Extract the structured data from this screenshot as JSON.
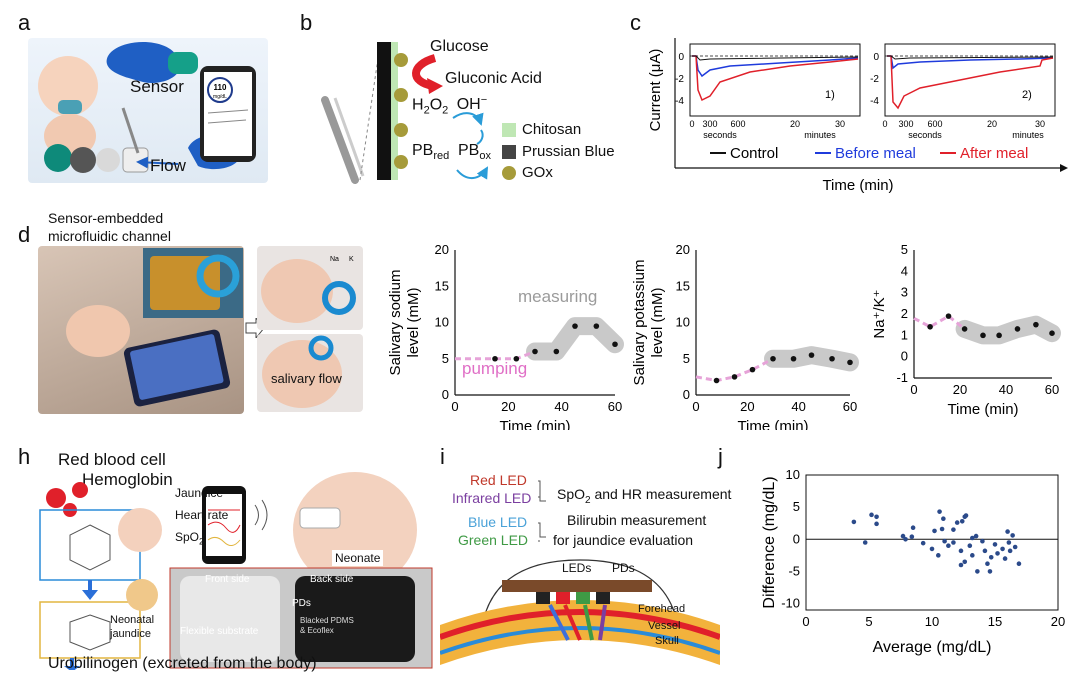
{
  "panels": {
    "a": {
      "label": "a",
      "sensor": "Sensor",
      "flow": "Flow",
      "phone_reading": "110",
      "phone_unit": "mg/dL"
    },
    "b": {
      "label": "b",
      "glucose": "Glucose",
      "gluconic": "Gluconic Acid",
      "h2o2": "H",
      "h2o2_sub1": "2",
      "h2o2_mid": "O",
      "h2o2_sub2": "2",
      "oh": "OH",
      "oh_sup": "−",
      "pb": "PB",
      "pb_red_sub": "red",
      "pb_ox": "PB",
      "pb_ox_sub": "ox",
      "legend": [
        {
          "label": "Chitosan",
          "color": "#bfe7b4"
        },
        {
          "label": "Prussian Blue",
          "color": "#444444"
        },
        {
          "label": "GOx",
          "color": "#a69b3a"
        }
      ]
    },
    "c": {
      "label": "c",
      "ylabel": "Current (μA)",
      "xlabel": "Time (min)",
      "legend": [
        {
          "label": "Control",
          "color": "#111111"
        },
        {
          "label": "Before meal",
          "color": "#1f3bdc"
        },
        {
          "label": "After meal",
          "color": "#e0202a"
        }
      ],
      "sub1": "1)",
      "sub2": "2)",
      "ticks_sec": [
        "0",
        "300",
        "600"
      ],
      "ticks_min": [
        "20",
        "30"
      ],
      "unit_sec": "seconds",
      "unit_min": "minutes",
      "yticks": [
        "0",
        "-2",
        "-4"
      ]
    },
    "d": {
      "label": "d",
      "title_line1": "Sensor-embedded",
      "title_line2": "microfluidic channel",
      "salivary_flow": "salivary flow",
      "na": "Na",
      "k": "K"
    },
    "h": {
      "label": "h",
      "rbc": "Red blood cell",
      "hemo": "Hemoglobin",
      "items": [
        "Jaundice",
        "Heart rate",
        "SpO"
      ],
      "spo_sub": "2",
      "neonate": "Neonate",
      "neonatal1": "Neonatal",
      "neonatal2": "jaundice",
      "front": "Front side",
      "back": "Back side",
      "pds": "PDs",
      "flex": "Flexible substrate",
      "blacked1": "Blacked PDMS",
      "blacked2": "& Ecoflex",
      "urobilinogen": "Urobilinogen (excreted from the body)"
    },
    "i": {
      "label": "i",
      "red_led": "Red LED",
      "ir_led": "Infrared LED",
      "blue_led": "Blue LED",
      "green_led": "Green LED",
      "spo": "SpO",
      "spo_sub": "2",
      "spo_rest": " and HR measurement",
      "bili1": "Bilirubin measurement",
      "bili2": "for jaundice evaluation",
      "leds": "LEDs",
      "pds": "PDs",
      "forehead": "Forehead",
      "vessel": "Vessel",
      "skull": "Skull"
    }
  },
  "chart_data": [
    {
      "id": "e",
      "type": "scatter",
      "ylabel": "Salivary sodium level (mM)",
      "xlabel": "Time (min)",
      "xlim": [
        0,
        60
      ],
      "ylim": [
        0,
        20
      ],
      "xticks": [
        "0",
        "20",
        "40",
        "60"
      ],
      "yticks": [
        "0",
        "5",
        "10",
        "15",
        "20"
      ],
      "points": [
        {
          "x": 15,
          "y": 5
        },
        {
          "x": 23,
          "y": 5
        },
        {
          "x": 30,
          "y": 6
        },
        {
          "x": 38,
          "y": 6
        },
        {
          "x": 45,
          "y": 9.5
        },
        {
          "x": 53,
          "y": 9.5
        },
        {
          "x": 60,
          "y": 7
        }
      ],
      "annotations": [
        "measuring",
        "pumping"
      ]
    },
    {
      "id": "f",
      "type": "scatter",
      "ylabel": "Salivary potassium level (mM)",
      "xlabel": "Time (min)",
      "xlim": [
        0,
        60
      ],
      "ylim": [
        0,
        20
      ],
      "xticks": [
        "0",
        "20",
        "40",
        "60"
      ],
      "yticks": [
        "0",
        "5",
        "10",
        "15",
        "20"
      ],
      "points": [
        {
          "x": 8,
          "y": 2
        },
        {
          "x": 15,
          "y": 2.5
        },
        {
          "x": 22,
          "y": 3.5
        },
        {
          "x": 30,
          "y": 5
        },
        {
          "x": 38,
          "y": 5
        },
        {
          "x": 45,
          "y": 5.5
        },
        {
          "x": 53,
          "y": 5
        },
        {
          "x": 60,
          "y": 4.5
        }
      ]
    },
    {
      "id": "g",
      "type": "scatter",
      "ylabel": "Na⁺/K⁺",
      "xlabel": "Time (min)",
      "xlim": [
        0,
        60
      ],
      "ylim": [
        -1,
        5
      ],
      "xticks": [
        "0",
        "20",
        "40",
        "60"
      ],
      "yticks": [
        "-1",
        "0",
        "1",
        "2",
        "3",
        "4",
        "5"
      ],
      "points": [
        {
          "x": 7,
          "y": 1.4
        },
        {
          "x": 15,
          "y": 1.9
        },
        {
          "x": 22,
          "y": 1.3
        },
        {
          "x": 30,
          "y": 1.0
        },
        {
          "x": 37,
          "y": 1.0
        },
        {
          "x": 45,
          "y": 1.3
        },
        {
          "x": 53,
          "y": 1.5
        },
        {
          "x": 60,
          "y": 1.1
        }
      ]
    },
    {
      "id": "j",
      "type": "scatter",
      "title": "",
      "xlabel": "Average (mg/dL)",
      "ylabel": "Difference (mg/dL)",
      "xlim": [
        0,
        20
      ],
      "ylim": [
        -11,
        10
      ],
      "xticks": [
        "0",
        "5",
        "10",
        "15",
        "20"
      ],
      "yticks": [
        "10",
        "5",
        "0",
        "-5",
        "-10"
      ],
      "points": [
        {
          "x": 3.8,
          "y": 2.7
        },
        {
          "x": 4.7,
          "y": -0.5
        },
        {
          "x": 5.2,
          "y": 3.8
        },
        {
          "x": 5.6,
          "y": 3.5
        },
        {
          "x": 5.6,
          "y": 2.4
        },
        {
          "x": 7.7,
          "y": 0.5
        },
        {
          "x": 7.9,
          "y": 0
        },
        {
          "x": 8.5,
          "y": 1.8
        },
        {
          "x": 8.4,
          "y": 0.4
        },
        {
          "x": 9.3,
          "y": -0.6
        },
        {
          "x": 10.2,
          "y": 1.3
        },
        {
          "x": 10.0,
          "y": -1.5
        },
        {
          "x": 10.6,
          "y": 4.3
        },
        {
          "x": 10.5,
          "y": -2.5
        },
        {
          "x": 10.8,
          "y": 1.6
        },
        {
          "x": 11.0,
          "y": -0.3
        },
        {
          "x": 11.3,
          "y": -1.0
        },
        {
          "x": 11.7,
          "y": -0.5
        },
        {
          "x": 11.7,
          "y": 1.5
        },
        {
          "x": 12.0,
          "y": 2.6
        },
        {
          "x": 12.4,
          "y": 2.8
        },
        {
          "x": 12.3,
          "y": -1.8
        },
        {
          "x": 12.6,
          "y": 3.5
        },
        {
          "x": 12.7,
          "y": 3.7
        },
        {
          "x": 12.6,
          "y": -3.5
        },
        {
          "x": 12.3,
          "y": -4.0
        },
        {
          "x": 13.0,
          "y": -1.0
        },
        {
          "x": 13.2,
          "y": -2.5
        },
        {
          "x": 13.6,
          "y": -5.0
        },
        {
          "x": 13.5,
          "y": 0.5
        },
        {
          "x": 14.0,
          "y": -0.3
        },
        {
          "x": 14.2,
          "y": -1.8
        },
        {
          "x": 14.4,
          "y": -3.8
        },
        {
          "x": 14.6,
          "y": -5.0
        },
        {
          "x": 14.7,
          "y": -2.8
        },
        {
          "x": 15.0,
          "y": -0.8
        },
        {
          "x": 15.2,
          "y": -2.2
        },
        {
          "x": 15.6,
          "y": -1.5
        },
        {
          "x": 15.8,
          "y": -3.0
        },
        {
          "x": 16.0,
          "y": 1.2
        },
        {
          "x": 16.1,
          "y": -0.5
        },
        {
          "x": 16.4,
          "y": 0.6
        },
        {
          "x": 16.2,
          "y": -1.8
        },
        {
          "x": 16.6,
          "y": -1.2
        },
        {
          "x": 16.9,
          "y": -3.8
        },
        {
          "x": 10.9,
          "y": 3.2
        },
        {
          "x": 13.2,
          "y": 0.2
        }
      ]
    }
  ]
}
